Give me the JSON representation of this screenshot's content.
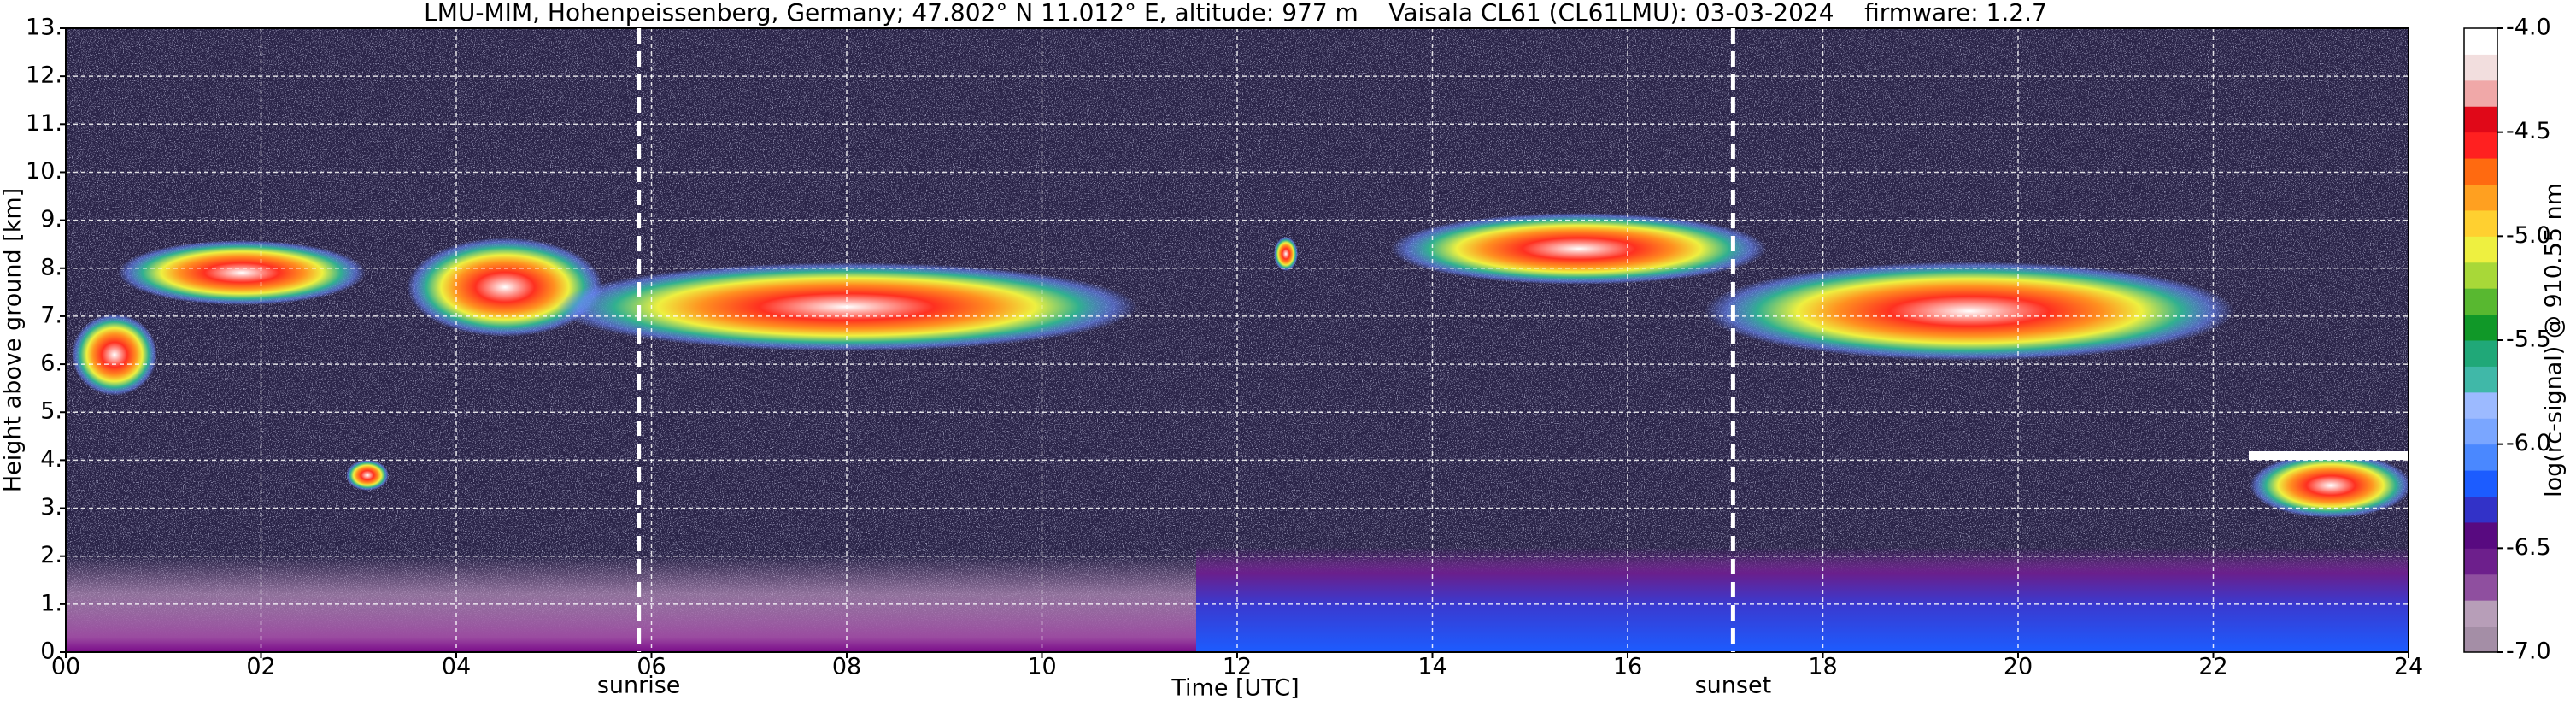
{
  "chart_data": {
    "type": "heatmap",
    "title": "LMU-MIM, Hohenpeissenberg, Germany; 47.802° N 11.012° E, altitude: 977 m    Vaisala CL61 (CL61LMU): 03-03-2024    firmware: 1.2.7",
    "x_label": "Time [UTC]",
    "y_label": "Height above ground [km]",
    "colorbar_label": "log(rc-signal) @ 910.55 nm",
    "xlim": [
      0,
      24
    ],
    "xticks": [
      {
        "value": 0,
        "label": "00"
      },
      {
        "value": 2,
        "label": "02"
      },
      {
        "value": 4,
        "label": "04"
      },
      {
        "value": 6,
        "label": "06"
      },
      {
        "value": 8,
        "label": "08"
      },
      10,
      12,
      14,
      16,
      18,
      20,
      22,
      24
    ],
    "ylim": [
      0,
      13
    ],
    "yticks": [
      {
        "value": 0,
        "label": "0."
      },
      {
        "value": 1,
        "label": "1."
      },
      {
        "value": 2,
        "label": "2."
      },
      {
        "value": 3,
        "label": "3."
      },
      {
        "value": 4,
        "label": "4."
      },
      {
        "value": 5,
        "label": "5."
      },
      {
        "value": 6,
        "label": "6."
      },
      {
        "value": 7,
        "label": "7."
      },
      {
        "value": 8,
        "label": "8."
      },
      {
        "value": 9,
        "label": "9."
      },
      {
        "value": 10,
        "label": "10."
      },
      {
        "value": 11,
        "label": "11."
      },
      {
        "value": 12,
        "label": "12."
      },
      {
        "value": 13,
        "label": "13."
      }
    ],
    "clim": [
      -7,
      -4
    ],
    "cticks": [
      {
        "value": -4,
        "label": "-4.0"
      },
      -4.5,
      {
        "value": -5,
        "label": "-5.0"
      },
      -5.5,
      {
        "value": -6,
        "label": "-6.0"
      },
      -6.5,
      {
        "value": -7,
        "label": "-7.0"
      }
    ],
    "colormap": [
      "#a48ea6",
      "#b79eb8",
      "#8f4f9f",
      "#6d1f8c",
      "#580a80",
      "#3232c8",
      "#1c5cff",
      "#4a88ff",
      "#7aa6ff",
      "#9cbaff",
      "#40b8a8",
      "#20a878",
      "#109828",
      "#58b830",
      "#a8d838",
      "#eef040",
      "#ffd030",
      "#ffa020",
      "#ff6a10",
      "#ff2020",
      "#e00818",
      "#f0a8a8",
      "#f2dede",
      "#ffffff"
    ],
    "grid": true,
    "annotations": [
      {
        "text": "sunrise",
        "x": 5.87
      },
      {
        "text": "sunset",
        "x": 17.08
      }
    ]
  }
}
